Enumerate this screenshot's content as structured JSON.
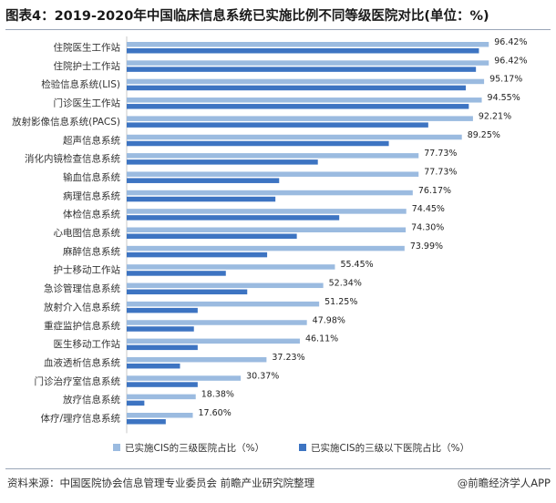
{
  "header": {
    "title": "图表4：2019-2020年中国临床信息系统已实施比例不同等级医院对比(单位：%)"
  },
  "footer": {
    "source": "资料来源：中国医院协会信息管理专业委员会 前瞻产业研究院整理",
    "brand": "@前瞻经济学人APP"
  },
  "colors": {
    "series1": "#9bbbe0",
    "series2": "#3d74c2"
  },
  "chart_data": {
    "type": "bar",
    "orientation": "horizontal",
    "categories": [
      "住院医生工作站",
      "住院护士工作站",
      "检验信息系统(LIS)",
      "门诊医生工作站",
      "放射影像信息系统(PACS)",
      "超声信息系统",
      "消化内镜检查信息系统",
      "输血信息系统",
      "病理信息系统",
      "体检信息系统",
      "心电图信息系统",
      "麻醉信息系统",
      "护士移动工作站",
      "急诊管理信息系统",
      "放射介入信息系统",
      "重症监护信息系统",
      "医生移动工作站",
      "血液透析信息系统",
      "门诊治疗室信息系统",
      "放疗信息系统",
      "体疗/理疗信息系统"
    ],
    "series": [
      {
        "name": "已实施CIS的三级医院占比（%）",
        "values": [
          96.42,
          96.42,
          95.17,
          94.55,
          92.21,
          89.25,
          77.73,
          77.73,
          76.17,
          74.45,
          74.3,
          73.99,
          55.45,
          52.34,
          51.25,
          47.98,
          46.11,
          37.23,
          30.37,
          18.38,
          17.6
        ],
        "labels": [
          "96.42%",
          "96.42%",
          "95.17%",
          "94.55%",
          "92.21%",
          "89.25%",
          "77.73%",
          "77.73%",
          "76.17%",
          "74.45%",
          "74.30%",
          "73.99%",
          "55.45%",
          "52.34%",
          "51.25%",
          "47.98%",
          "46.11%",
          "37.23%",
          "30.37%",
          "18.38%",
          "17.60%"
        ]
      },
      {
        "name": "已实施CIS的三级以下医院占比（%）",
        "values": [
          93.8,
          93.0,
          90.3,
          91.1,
          80.3,
          69.8,
          50.9,
          40.6,
          39.6,
          56.6,
          45.3,
          37.4,
          26.4,
          32.1,
          18.9,
          17.9,
          18.9,
          14.2,
          18.9,
          4.7,
          10.4
        ]
      }
    ],
    "xlim": [
      0,
      100
    ],
    "legend": "bottom"
  }
}
